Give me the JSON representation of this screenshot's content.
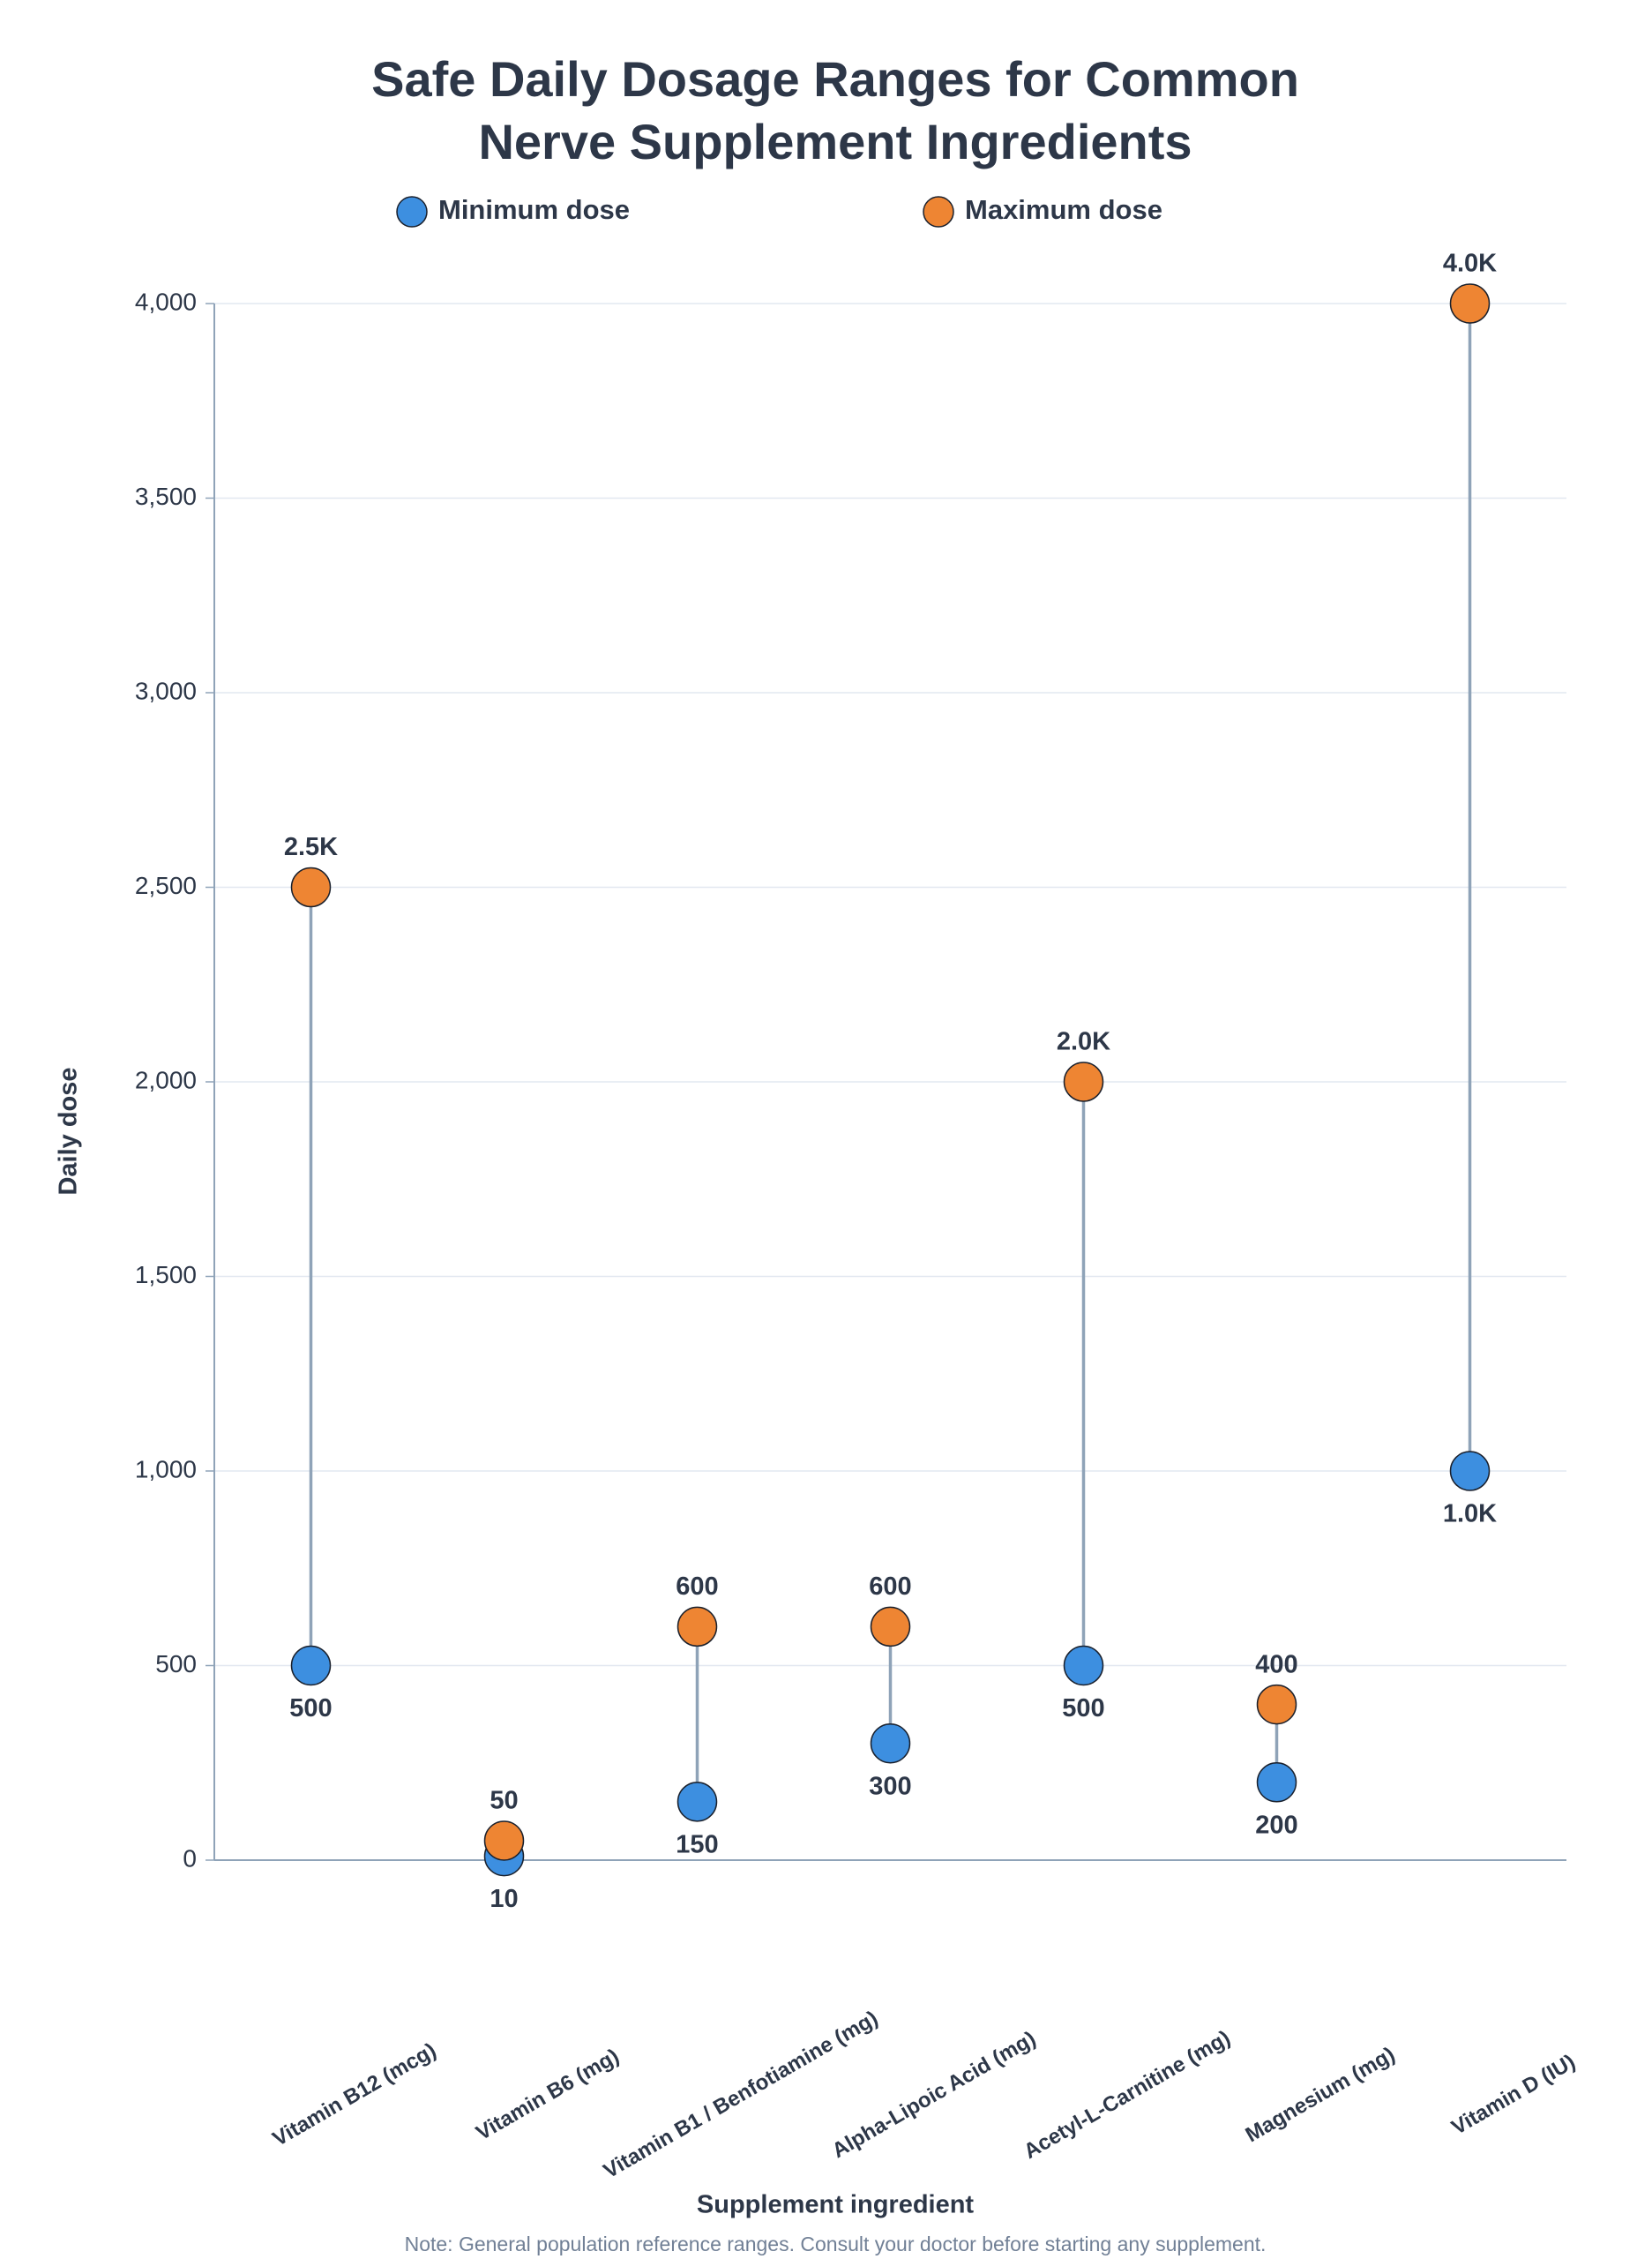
{
  "chart_data": {
    "type": "dumbbell",
    "title": [
      "Safe Daily Dosage Ranges for Common",
      "Nerve Supplement Ingredients"
    ],
    "x_label": "Supplement ingredient",
    "y_label": "Daily dose",
    "note": "Note: General population reference ranges. Consult your doctor before starting any supplement.",
    "categories": [
      "Vitamin B12 (mcg)",
      "Vitamin B6 (mg)",
      "Vitamin B1 / Benfotiamine (mg)",
      "Alpha-Lipoic Acid (mg)",
      "Acetyl-L-Carnitine (mg)",
      "Magnesium (mg)",
      "Vitamin D (IU)"
    ],
    "series": [
      {
        "name": "Minimum dose",
        "color": "#3d8fe0",
        "values": [
          500,
          10,
          150,
          300,
          500,
          200,
          1000
        ],
        "value_labels": [
          "500",
          "10",
          "150",
          "300",
          "500",
          "200",
          "1.0K"
        ]
      },
      {
        "name": "Maximum dose",
        "color": "#ee8533",
        "values": [
          2500,
          50,
          600,
          600,
          2000,
          400,
          4000
        ],
        "value_labels": [
          "2.5K",
          "50",
          "600",
          "600",
          "2.0K",
          "400",
          "4.0K"
        ]
      }
    ],
    "connector_color": "#8fa3b8",
    "ylim": [
      0,
      4000
    ],
    "yticks": [
      0,
      500,
      {
        "value": 1000,
        "label": "1,000"
      },
      {
        "value": 1500,
        "label": "1,500"
      },
      {
        "value": 2000,
        "label": "2,000"
      },
      {
        "value": 2500,
        "label": "2,500"
      },
      {
        "value": 3000,
        "label": "3,000"
      },
      {
        "value": 3500,
        "label": "3,500"
      },
      {
        "value": 4000,
        "label": "4,000"
      }
    ],
    "grid": true,
    "legend": "top"
  }
}
